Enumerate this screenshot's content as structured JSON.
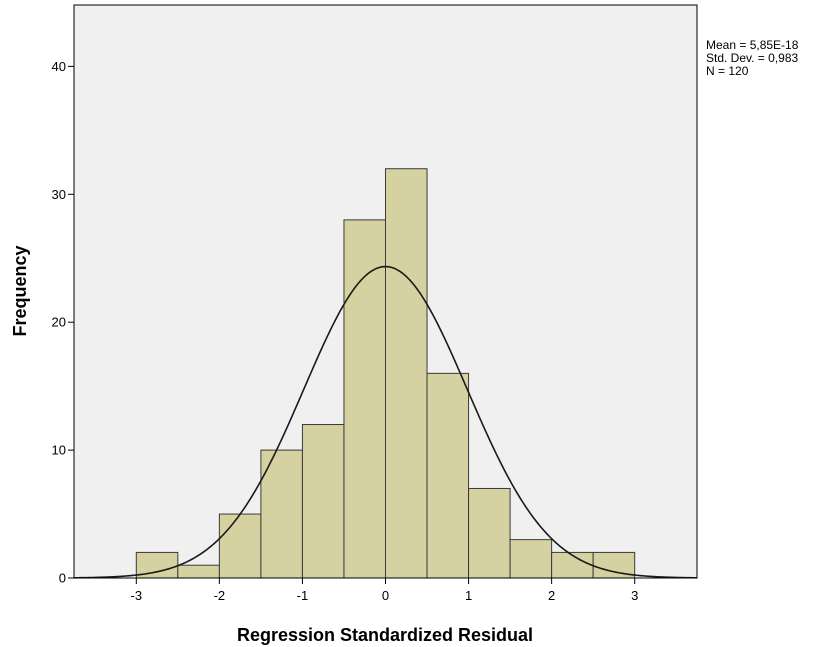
{
  "chart_data": {
    "type": "bar",
    "subtype": "histogram",
    "title": "",
    "xlabel": "Regression Standardized Residual",
    "ylabel": "Frequency",
    "bin_edges": [
      -3.0,
      -2.5,
      -2.0,
      -1.5,
      -1.0,
      -0.5,
      0.0,
      0.5,
      1.0,
      1.5,
      2.0,
      2.5,
      3.0
    ],
    "values": [
      2,
      1,
      5,
      10,
      12,
      28,
      32,
      16,
      7,
      3,
      2,
      2
    ],
    "xlim": [
      -3.75,
      3.75
    ],
    "ylim": [
      0,
      44.8
    ],
    "x_ticks": [
      -3,
      -2,
      -1,
      0,
      1,
      2,
      3
    ],
    "x_tick_labels": [
      "-3",
      "-2",
      "-1",
      "0",
      "1",
      "2",
      "3"
    ],
    "y_ticks": [
      0,
      10,
      20,
      30,
      40
    ],
    "y_tick_labels": [
      "0",
      "10",
      "20",
      "30",
      "40"
    ],
    "normal_curve": {
      "mean": 0,
      "std": 0.983,
      "n": 120,
      "bin_width": 0.5
    },
    "stats_text": [
      "Mean = 5,85E-18",
      "Std. Dev. = 0,983",
      "N = 120"
    ],
    "grid": false,
    "colors": {
      "bar_fill": "#D6D1A0",
      "bar_stroke": "#3A3A3A",
      "plot_background": "#F0F0F0",
      "curve": "#1A1A1A",
      "axis": "#000000"
    }
  }
}
